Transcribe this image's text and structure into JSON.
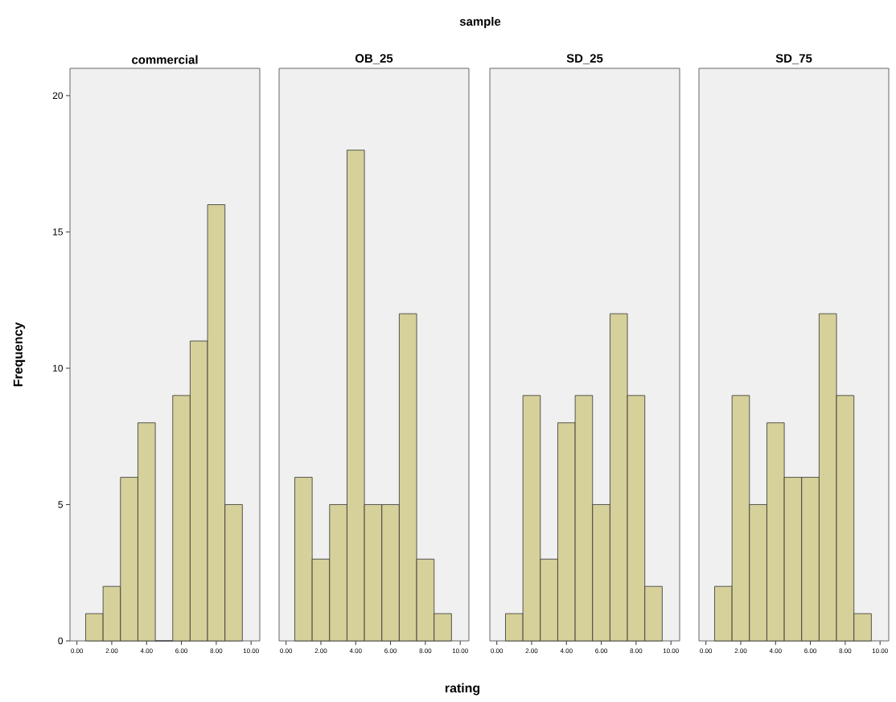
{
  "chart_data": [
    {
      "type": "histogram",
      "title": "commercial",
      "ylabel": "Frequency",
      "annotations": [
        "sample"
      ],
      "bins": [
        0.5,
        1.5,
        2.5,
        3.5,
        4.5,
        5.5,
        6.5,
        7.5,
        8.5,
        9.5
      ],
      "values": [
        1,
        2,
        6,
        8,
        0,
        9,
        11,
        16,
        5
      ],
      "color": "#d6d09a",
      "xlim": [
        -0.4,
        10.5
      ],
      "ylim": [
        0,
        21
      ],
      "xticks": [
        {
          "value": 0,
          "label": "0.00"
        },
        {
          "value": 2,
          "label": "2.00"
        },
        {
          "value": 4,
          "label": "4.00"
        },
        {
          "value": 6,
          "label": "6.00"
        },
        {
          "value": 8,
          "label": "8.00"
        },
        {
          "value": 10,
          "label": "10.00"
        }
      ],
      "yticks": [
        0,
        5,
        10,
        15,
        20
      ]
    },
    {
      "type": "histogram",
      "title": "OB_25",
      "xlabel": "rating",
      "tick_labels": "x",
      "bins": [
        0.5,
        1.5,
        2.5,
        3.5,
        4.5,
        5.5,
        6.5,
        7.5,
        8.5,
        9.5
      ],
      "values": [
        6,
        3,
        5,
        18,
        5,
        5,
        12,
        3,
        1
      ],
      "color": "#d6d09a",
      "xlim": [
        -0.4,
        10.5
      ],
      "ylim": [
        0,
        21
      ],
      "xticks": [
        {
          "value": 0,
          "label": "0.00"
        },
        {
          "value": 2,
          "label": "2.00"
        },
        {
          "value": 4,
          "label": "4.00"
        },
        {
          "value": 6,
          "label": "6.00"
        },
        {
          "value": 8,
          "label": "8.00"
        },
        {
          "value": 10,
          "label": "10.00"
        }
      ],
      "yticks": [
        0,
        5,
        10,
        15,
        20
      ]
    },
    {
      "type": "histogram",
      "title": "SD_25",
      "tick_labels": "x",
      "bins": [
        0.5,
        1.5,
        2.5,
        3.5,
        4.5,
        5.5,
        6.5,
        7.5,
        8.5,
        9.5
      ],
      "values": [
        1,
        9,
        3,
        8,
        9,
        5,
        12,
        9,
        2
      ],
      "color": "#d6d09a",
      "xlim": [
        -0.4,
        10.5
      ],
      "ylim": [
        0,
        21
      ],
      "xticks": [
        {
          "value": 0,
          "label": "0.00"
        },
        {
          "value": 2,
          "label": "2.00"
        },
        {
          "value": 4,
          "label": "4.00"
        },
        {
          "value": 6,
          "label": "6.00"
        },
        {
          "value": 8,
          "label": "8.00"
        },
        {
          "value": 10,
          "label": "10.00"
        }
      ],
      "yticks": [
        0,
        5,
        10,
        15,
        20
      ]
    },
    {
      "type": "histogram",
      "title": "SD_75",
      "tick_labels": "x",
      "bins": [
        0.5,
        1.5,
        2.5,
        3.5,
        4.5,
        5.5,
        6.5,
        7.5,
        8.5,
        9.5
      ],
      "values": [
        2,
        9,
        5,
        8,
        6,
        6,
        12,
        9,
        1
      ],
      "color": "#d6d09a",
      "xlim": [
        -0.4,
        10.5
      ],
      "ylim": [
        0,
        21
      ],
      "xticks": [
        {
          "value": 0,
          "label": "0.00"
        },
        {
          "value": 2,
          "label": "2.00"
        },
        {
          "value": 4,
          "label": "4.00"
        },
        {
          "value": 6,
          "label": "6.00"
        },
        {
          "value": 8,
          "label": "8.00"
        },
        {
          "value": 10,
          "label": "10.00"
        }
      ],
      "yticks": [
        0,
        5,
        10,
        15,
        20
      ]
    }
  ]
}
